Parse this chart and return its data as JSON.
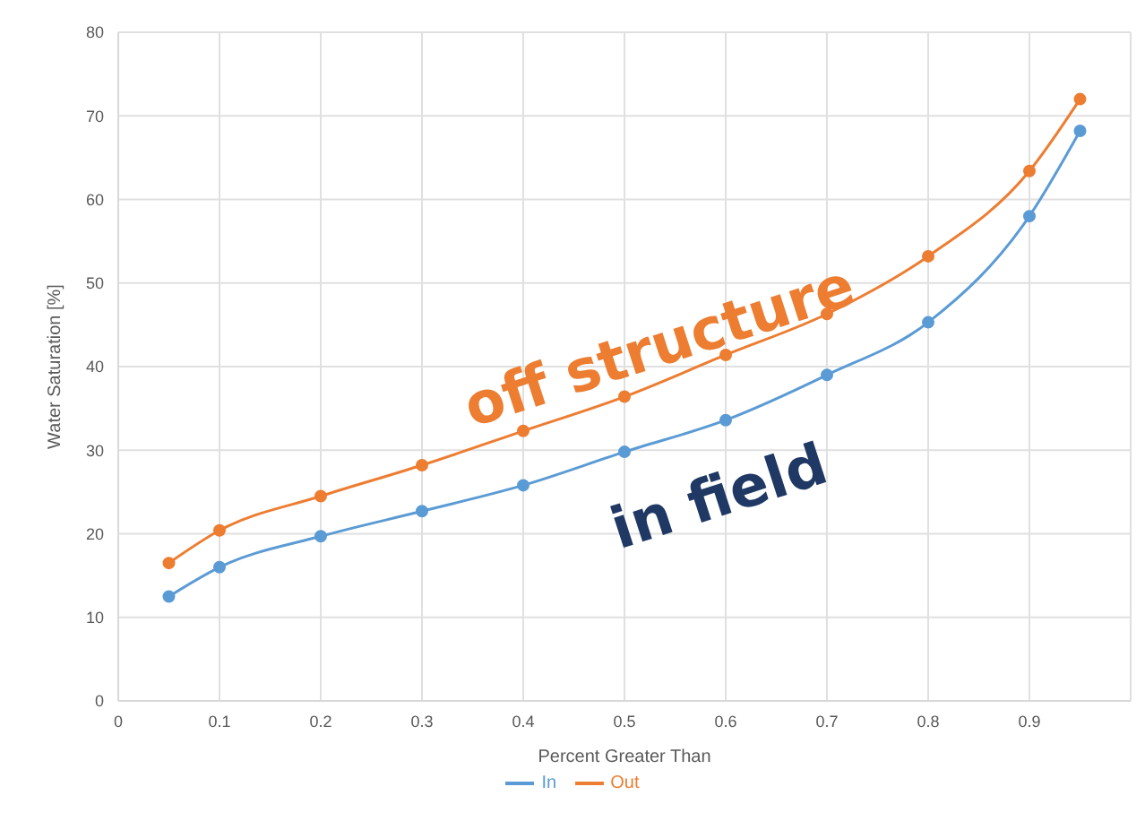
{
  "chart_data": {
    "type": "line",
    "xlabel": "Percent Greater Than",
    "ylabel": "Water Saturation [%]",
    "x": [
      0.05,
      0.1,
      0.2,
      0.3,
      0.4,
      0.5,
      0.6,
      0.7,
      0.8,
      0.9,
      0.95
    ],
    "series": [
      {
        "name": "In",
        "color": "#5b9bd5",
        "values": [
          12.5,
          16,
          19.7,
          22.7,
          25.8,
          29.8,
          33.6,
          39,
          45.3,
          58,
          68.2
        ]
      },
      {
        "name": "Out",
        "color": "#ed7d31",
        "values": [
          16.5,
          20.4,
          24.5,
          28.2,
          32.3,
          36.4,
          41.4,
          46.3,
          53.2,
          63.4,
          72
        ]
      }
    ],
    "xlim": [
      0,
      1
    ],
    "xticks": [
      0,
      0.1,
      0.2,
      0.3,
      0.4,
      0.5,
      0.6,
      0.7,
      0.8,
      0.9
    ],
    "ylim": [
      0,
      80
    ],
    "yticks": [
      0,
      10,
      20,
      30,
      40,
      50,
      60,
      70,
      80
    ],
    "annotations": [
      "off structure",
      "in field"
    ],
    "grid": true,
    "legend": "bottom",
    "marker": "circle",
    "line_style": "solid"
  }
}
